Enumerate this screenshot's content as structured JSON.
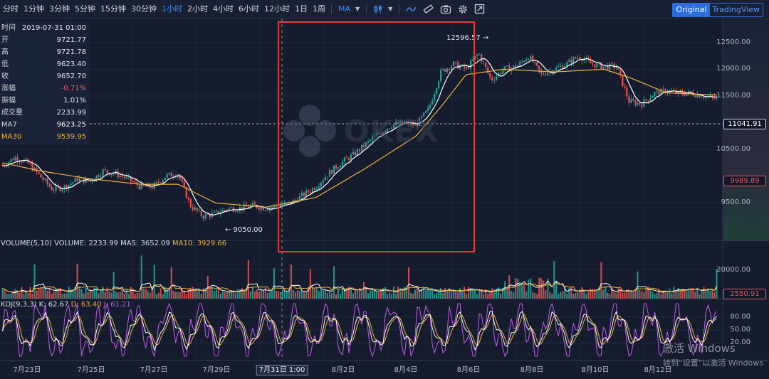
{
  "toolbar": {
    "intervals": [
      "分时",
      "1分钟",
      "3分钟",
      "5分钟",
      "15分钟",
      "30分钟",
      "1小时",
      "2小时",
      "4小时",
      "6小时",
      "12小时",
      "1日",
      "1周"
    ],
    "active_interval": "1小时",
    "indicator_label": "MA",
    "view_tabs": [
      "Original",
      "TradingView"
    ],
    "active_view": "Original"
  },
  "ohlc_panel": [
    {
      "key": "时间",
      "value": "2019-07-31 01:00"
    },
    {
      "key": "开",
      "value": "9721.77"
    },
    {
      "key": "高",
      "value": "9721.78"
    },
    {
      "key": "低",
      "value": "9623.40"
    },
    {
      "key": "收",
      "value": "9652.70"
    },
    {
      "key": "涨幅",
      "value": "-0.71%"
    },
    {
      "key": "振幅",
      "value": "1.01%"
    },
    {
      "key": "成交量",
      "value": "2233.99"
    },
    {
      "key": "MA7",
      "value": "9623.25"
    },
    {
      "key": "MA30",
      "value": "9539.95"
    }
  ],
  "price_labels": {
    "high": "12596.57 →",
    "low": "← 9050.00"
  },
  "volume_legend": {
    "name": "VOLUME(5,10)",
    "volume": "VOLUME: 2233.99",
    "ma5": "MA5: 3652.09",
    "ma10": "MA10: 3929.66"
  },
  "kdj_legend": {
    "name": "KDJ(9,3,3)",
    "k": "K: 62.67",
    "d": "D: 63.40",
    "j": "J: 61.21"
  },
  "price_tags": {
    "current": "11041.91",
    "marker": "9989.89",
    "volume": "2550.91"
  },
  "watermark": "OKEX",
  "os_notice": {
    "line1": "激活 Windows",
    "line2": "转到“设置”以激活 Windows"
  },
  "colors": {
    "up": "#26a69a",
    "down": "#ef5350",
    "ma7": "#ffffff",
    "ma30": "#f0b13c",
    "kdj_j": "#c05be8",
    "highlight": "#e23b3b",
    "accent": "#3c8cf5"
  },
  "chart_data": {
    "type": "candlestick",
    "title": "",
    "x_tick_labels": [
      "7月23日",
      "7月25日",
      "7月27日",
      "7月29日",
      "7月31日 1:00",
      "8月2日",
      "8月4日",
      "8月6日",
      "8月8日",
      "8月10日",
      "8月12日"
    ],
    "crosshair_label": "7月31日 1:00",
    "price_axis": {
      "ticks": [
        12500,
        12000,
        11500,
        10500,
        9500
      ],
      "tick_labels": [
        "12500.00",
        "12000.00",
        "11500.00",
        "10500.00",
        "9500.00"
      ],
      "range": [
        8800,
        12950
      ]
    },
    "volume_axis": {
      "ticks": [
        20000
      ],
      "tick_labels": [
        "20000.00"
      ],
      "range": [
        0,
        40000
      ]
    },
    "kdj_axis": {
      "ticks": [
        80,
        50,
        20
      ],
      "tick_labels": [
        "80.00",
        "50.00",
        "20.00"
      ],
      "range": [
        -20,
        120
      ]
    },
    "price_path": [
      [
        0,
        10200
      ],
      [
        1,
        10350
      ],
      [
        2,
        10250
      ],
      [
        3,
        10000
      ],
      [
        4,
        9750
      ],
      [
        5,
        9800
      ],
      [
        6,
        9950
      ],
      [
        7,
        9900
      ],
      [
        8,
        10100
      ],
      [
        9,
        10050
      ],
      [
        10,
        9950
      ],
      [
        11,
        9800
      ],
      [
        12,
        9800
      ],
      [
        13,
        10000
      ],
      [
        14,
        10050
      ],
      [
        15,
        9450
      ],
      [
        16,
        9250
      ],
      [
        17,
        9300
      ],
      [
        18,
        9400
      ],
      [
        19,
        9400
      ],
      [
        20,
        9450
      ],
      [
        21,
        9400
      ],
      [
        22,
        9450
      ],
      [
        23,
        9500
      ],
      [
        24,
        9650
      ],
      [
        25,
        9800
      ],
      [
        26,
        10050
      ],
      [
        27,
        10250
      ],
      [
        28,
        10400
      ],
      [
        29,
        10600
      ],
      [
        30,
        10800
      ],
      [
        31,
        10950
      ],
      [
        32,
        11000
      ],
      [
        33,
        10950
      ],
      [
        34,
        11250
      ],
      [
        35,
        11950
      ],
      [
        36,
        12100
      ],
      [
        37,
        12000
      ],
      [
        38,
        12300
      ],
      [
        39,
        11800
      ],
      [
        40,
        12000
      ],
      [
        41,
        12050
      ],
      [
        42,
        12250
      ],
      [
        43,
        11900
      ],
      [
        44,
        12000
      ],
      [
        45,
        12100
      ],
      [
        46,
        12250
      ],
      [
        47,
        12100
      ],
      [
        48,
        12050
      ],
      [
        49,
        12050
      ],
      [
        50,
        11400
      ],
      [
        51,
        11350
      ],
      [
        52,
        11550
      ],
      [
        53,
        11600
      ],
      [
        54,
        11550
      ],
      [
        55,
        11550
      ],
      [
        56,
        11500
      ],
      [
        57,
        11450
      ]
    ],
    "ma30_path": [
      [
        0,
        10250
      ],
      [
        3,
        10100
      ],
      [
        7,
        9950
      ],
      [
        11,
        9850
      ],
      [
        14,
        9850
      ],
      [
        17,
        9500
      ],
      [
        21,
        9420
      ],
      [
        25,
        9600
      ],
      [
        29,
        10150
      ],
      [
        33,
        10750
      ],
      [
        35,
        11300
      ],
      [
        37,
        11900
      ],
      [
        40,
        12000
      ],
      [
        44,
        11950
      ],
      [
        48,
        12000
      ],
      [
        50,
        11850
      ],
      [
        53,
        11560
      ],
      [
        57,
        11520
      ]
    ]
  }
}
